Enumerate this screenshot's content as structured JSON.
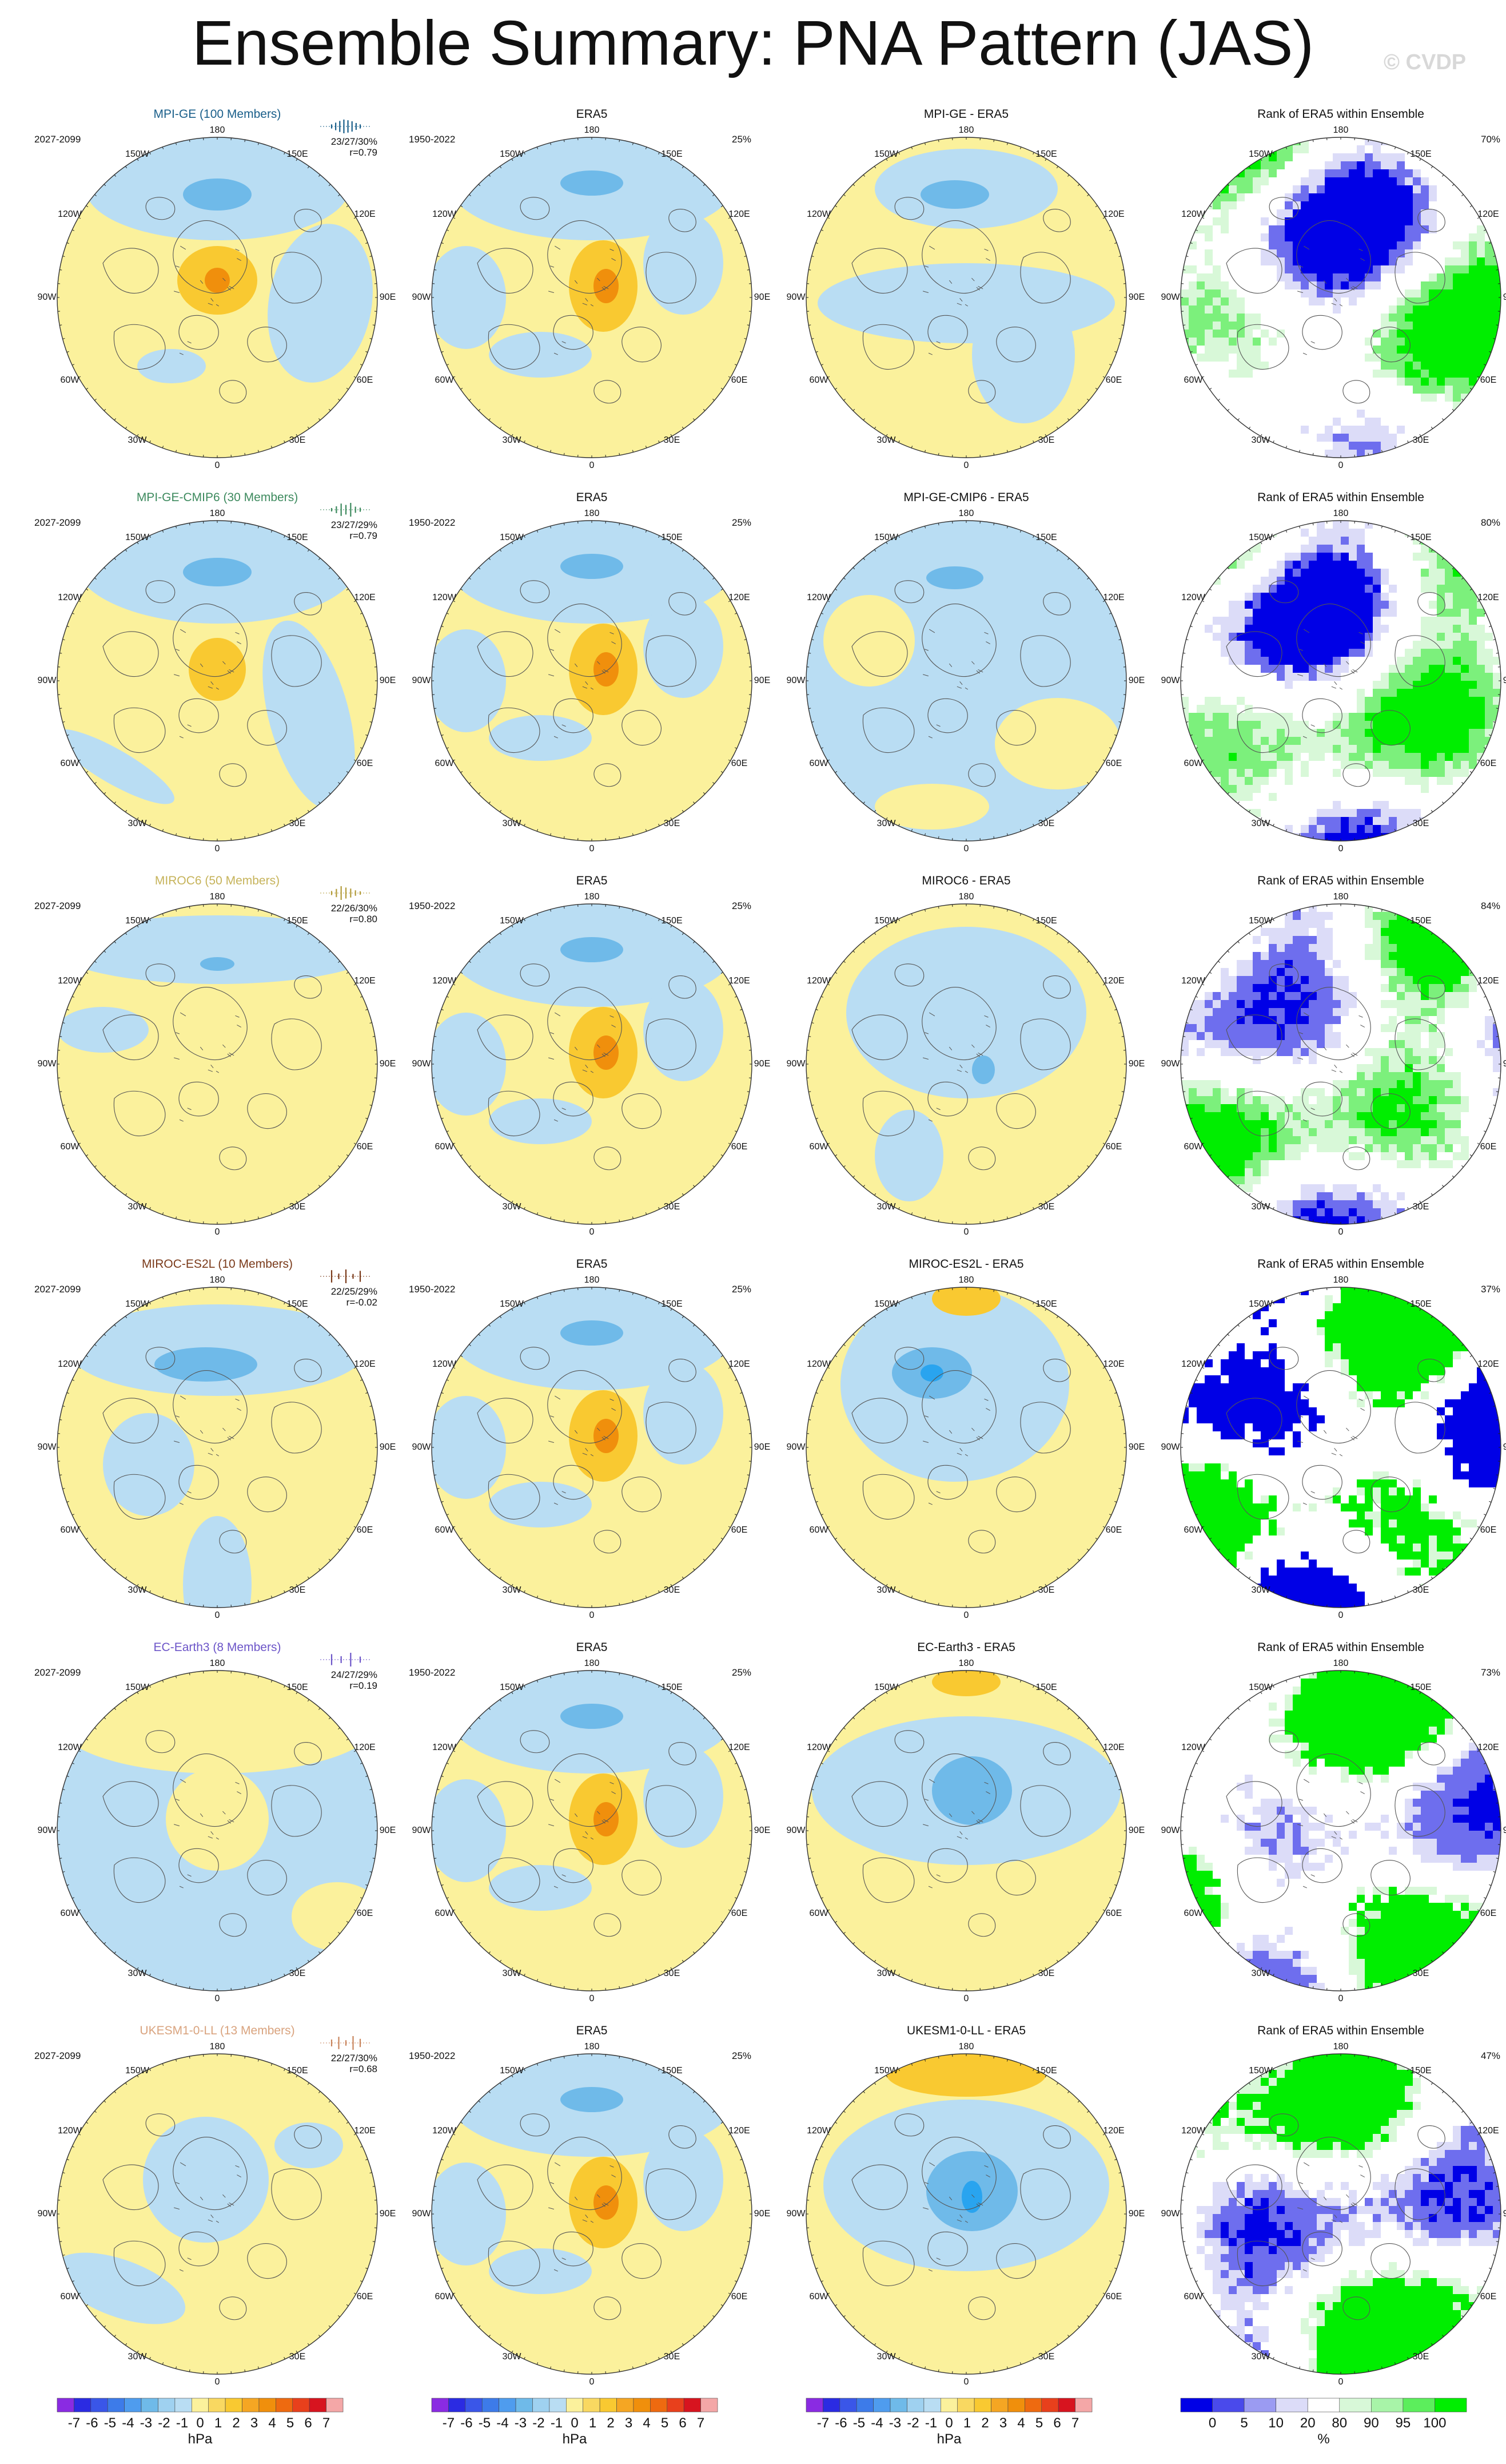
{
  "title": "Ensemble Summary: PNA Pattern (JAS)",
  "watermark": "© CVDP",
  "colors": {
    "pos_light": "#fbf19c",
    "pos_mid": "#f9c931",
    "pos_strong": "#f08f0c",
    "neg_light": "#b9ddf3",
    "neg_mid": "#6fbae9",
    "neg_strong": "#29a4ef",
    "rank_low": "#0000e6",
    "rank_mid_low": "#6e6eee",
    "rank_pale_low": "#dcdcf8",
    "rank_pale_high": "#d8f8d8",
    "rank_mid_high": "#7cf07c",
    "rank_high": "#00ee00",
    "coast": "#555555"
  },
  "lon_labels": {
    "top": "180",
    "bottom": "0",
    "upper_left": "150W",
    "upper_right": "150E",
    "mid_upper_left": "120W",
    "mid_upper_right": "120E",
    "left": "90W",
    "right": "90E",
    "mid_lower_left": "60W",
    "mid_lower_right": "60E",
    "lower_left": "30W",
    "lower_right": "30E"
  },
  "era5": {
    "title": "ERA5",
    "period": "1950-2022",
    "pct": "25%"
  },
  "rank_title": "Rank of ERA5 within Ensemble",
  "rows": [
    {
      "model": "MPI-GE (100 Members)",
      "name_color": "#1a5f8a",
      "period": "2027-2099",
      "stats": "23/27/30%",
      "r": "r=0.79",
      "diff_title": "MPI-GE - ERA5",
      "rank_pct": "70%",
      "bar_color": "#1a5f8a",
      "bars": [
        0.3,
        0.55,
        0.8,
        1.0,
        0.9,
        0.75,
        0.5,
        0.3
      ]
    },
    {
      "model": "MPI-GE-CMIP6 (30 Members)",
      "name_color": "#3d8a5e",
      "period": "2027-2099",
      "stats": "23/27/29%",
      "r": "r=0.79",
      "diff_title": "MPI-GE-CMIP6 - ERA5",
      "rank_pct": "80%",
      "bar_color": "#3d8a5e",
      "bars": [
        0.25,
        0.5,
        0.9,
        0.7,
        1.0,
        0.45,
        0.3
      ]
    },
    {
      "model": "MIROC6 (50 Members)",
      "name_color": "#c6b35a",
      "period": "2027-2099",
      "stats": "22/26/30%",
      "r": "r=0.80",
      "diff_title": "MIROC6 - ERA5",
      "rank_pct": "84%",
      "bar_color": "#b39c3c",
      "bars": [
        0.3,
        0.6,
        1.0,
        0.8,
        0.65,
        0.4,
        0.25
      ]
    },
    {
      "model": "MIROC-ES2L (10 Members)",
      "name_color": "#7a3a1a",
      "period": "2027-2099",
      "stats": "22/25/29%",
      "r": "r=-0.02",
      "diff_title": "MIROC-ES2L - ERA5",
      "rank_pct": "37%",
      "bar_color": "#7a3a1a",
      "bars": [
        0.9,
        0.4,
        1.0,
        0.35,
        0.8
      ]
    },
    {
      "model": "EC-Earth3 (8 Members)",
      "name_color": "#6c55c8",
      "period": "2027-2099",
      "stats": "24/27/29%",
      "r": "r=0.19",
      "diff_title": "EC-Earth3 - ERA5",
      "rank_pct": "73%",
      "bar_color": "#6c55c8",
      "bars": [
        0.8,
        0.5,
        1.0,
        0.45
      ]
    },
    {
      "model": "UKESM1-0-LL (13 Members)",
      "name_color": "#d9a37e",
      "period": "2027-2099",
      "stats": "22/27/30%",
      "r": "r=0.68",
      "diff_title": "UKESM1-0-LL - ERA5",
      "rank_pct": "47%",
      "bar_color": "#c8845c",
      "bars": [
        0.5,
        0.9,
        0.4,
        1.0,
        0.6
      ]
    }
  ],
  "colorbar_hpa": {
    "labels": [
      "-7",
      "-6",
      "-5",
      "-4",
      "-3",
      "-2",
      "-1",
      "0",
      "1",
      "2",
      "3",
      "4",
      "5",
      "6",
      "7"
    ],
    "unit": "hPa",
    "colors": [
      "#8a2be2",
      "#2b2be2",
      "#3a56e8",
      "#3d7be9",
      "#4f9cee",
      "#6fbae9",
      "#9fd1f0",
      "#b9ddf3",
      "#fbf19c",
      "#f9d861",
      "#f9c931",
      "#f5a623",
      "#f08f0c",
      "#ee6a10",
      "#e8401c",
      "#d7141f",
      "#f4a7a7"
    ]
  },
  "colorbar_rank": {
    "labels": [
      "0",
      "5",
      "10",
      "20",
      "80",
      "90",
      "95",
      "100"
    ],
    "unit": "%",
    "colors": [
      "#0000e6",
      "#4a4aeb",
      "#9b9bf2",
      "#dcdcf8",
      "#ffffff",
      "#d8f8d8",
      "#a8f4a8",
      "#5cee5c",
      "#00ee00"
    ]
  }
}
